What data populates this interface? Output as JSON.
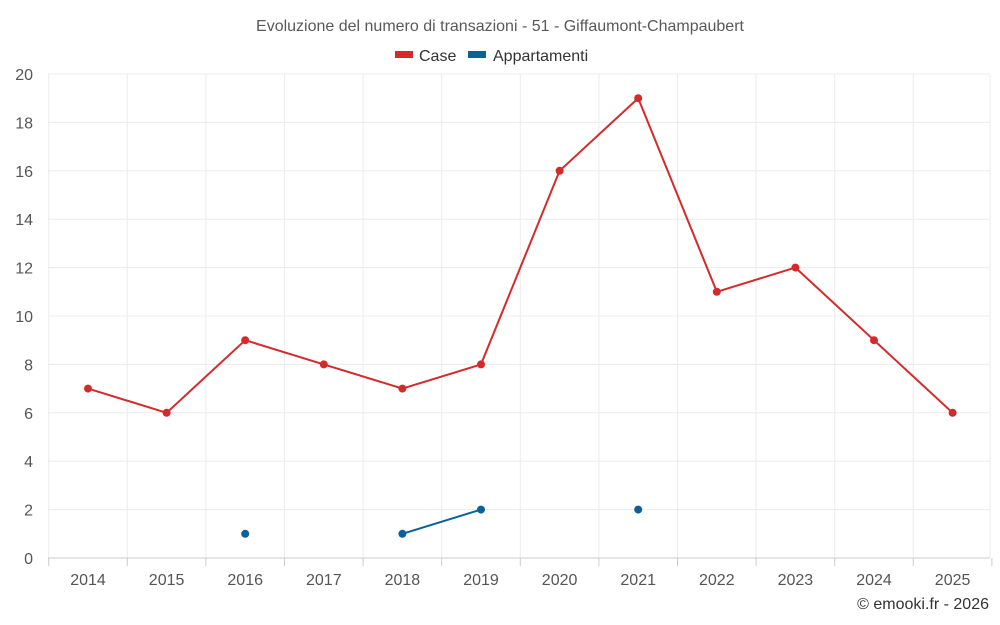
{
  "chart_data": {
    "type": "line",
    "title": "Evoluzione del numero di transazioni - 51 - Giffaumont-Champaubert",
    "categories": [
      "2014",
      "2015",
      "2016",
      "2017",
      "2018",
      "2019",
      "2020",
      "2021",
      "2022",
      "2023",
      "2024",
      "2025"
    ],
    "series": [
      {
        "name": "Case",
        "color": "#d42a2a",
        "values": [
          7,
          6,
          9,
          8,
          7,
          8,
          16,
          19,
          11,
          12,
          9,
          6
        ]
      },
      {
        "name": "Appartamenti",
        "color": "#0a6199",
        "values": [
          null,
          null,
          1,
          null,
          1,
          2,
          null,
          2,
          null,
          null,
          null,
          null
        ]
      }
    ],
    "ylim": [
      0,
      20
    ],
    "yticks": [
      "0",
      "2",
      "4",
      "6",
      "8",
      "10",
      "12",
      "14",
      "16",
      "18",
      "20"
    ],
    "grid": true,
    "legend_position": "top-center",
    "xlabel": "",
    "ylabel": ""
  },
  "credit": "© emooki.fr - 2026"
}
